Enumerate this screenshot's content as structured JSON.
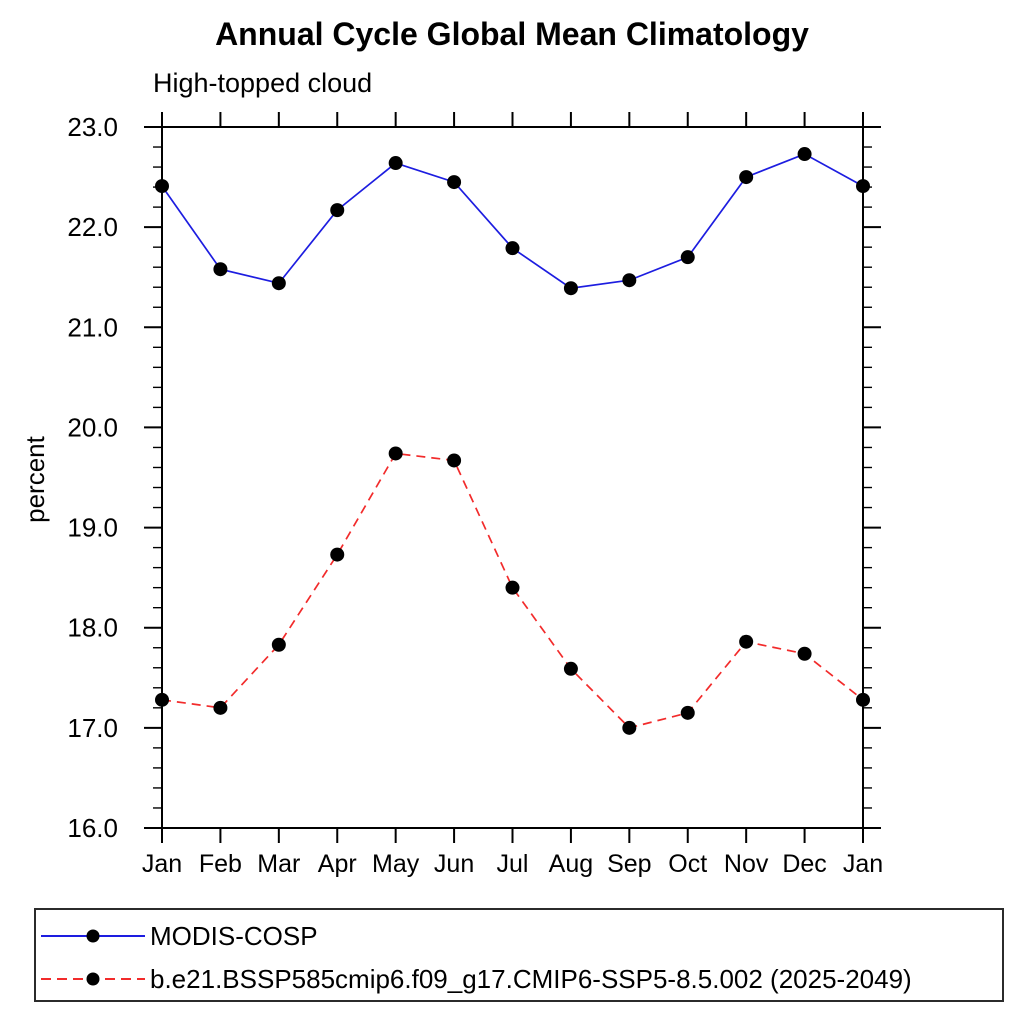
{
  "chart_data": {
    "type": "line",
    "title": "Annual Cycle Global Mean Climatology",
    "subtitle": "High-topped cloud",
    "ylabel": "percent",
    "xlabel": "",
    "ylim": [
      16.0,
      23.0
    ],
    "y_major_step": 1.0,
    "y_minor_step": 0.2,
    "y_tick_labels": [
      "23.0",
      "22.0",
      "21.0",
      "20.0",
      "19.0",
      "18.0",
      "17.0",
      "16.0"
    ],
    "categories": [
      "Jan",
      "Feb",
      "Mar",
      "Apr",
      "May",
      "Jun",
      "Jul",
      "Aug",
      "Sep",
      "Oct",
      "Nov",
      "Dec",
      "Jan"
    ],
    "grid": false,
    "legend_position": "bottom",
    "axis_color": "#000000",
    "marker_shape": "filled-circle",
    "series": [
      {
        "name": "MODIS-COSP",
        "color": "#1d1de0",
        "line_style": "solid",
        "marker_color": "#000000",
        "values": [
          22.41,
          21.58,
          21.44,
          22.17,
          22.64,
          22.45,
          21.79,
          21.39,
          21.47,
          21.7,
          22.5,
          22.73,
          22.41
        ]
      },
      {
        "name": "b.e21.BSSP585cmip6.f09_g17.CMIP6-SSP5-8.5.002 (2025-2049)",
        "color": "#f22b2b",
        "line_style": "dashed",
        "marker_color": "#000000",
        "values": [
          17.28,
          17.2,
          17.83,
          18.73,
          19.74,
          19.67,
          18.4,
          17.59,
          17.0,
          17.15,
          17.86,
          17.74,
          17.28
        ]
      }
    ]
  }
}
